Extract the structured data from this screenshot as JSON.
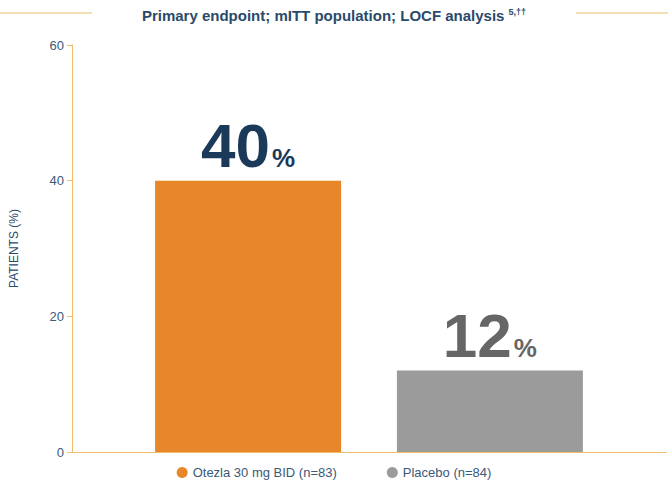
{
  "chart_data": {
    "type": "bar",
    "title": "Primary endpoint; mITT population; LOCF analysis",
    "title_superscript": "5,††",
    "ylabel": "PATIENTS (%)",
    "categories": [
      null
    ],
    "series": [
      {
        "name": "Otezla 30 mg BID (n=83)",
        "color": "#e8862a",
        "values": [
          40
        ],
        "value_labels": [
          "40%"
        ]
      },
      {
        "name": "Placebo (n=84)",
        "color": "#9b9b9b",
        "values": [
          12
        ],
        "value_labels": [
          "12%"
        ]
      }
    ],
    "ylim": [
      0,
      60
    ],
    "yticks": [
      0,
      20,
      40,
      60
    ],
    "grid": false,
    "legend": "bottom",
    "data_labels": true,
    "tick_labels": "y"
  }
}
